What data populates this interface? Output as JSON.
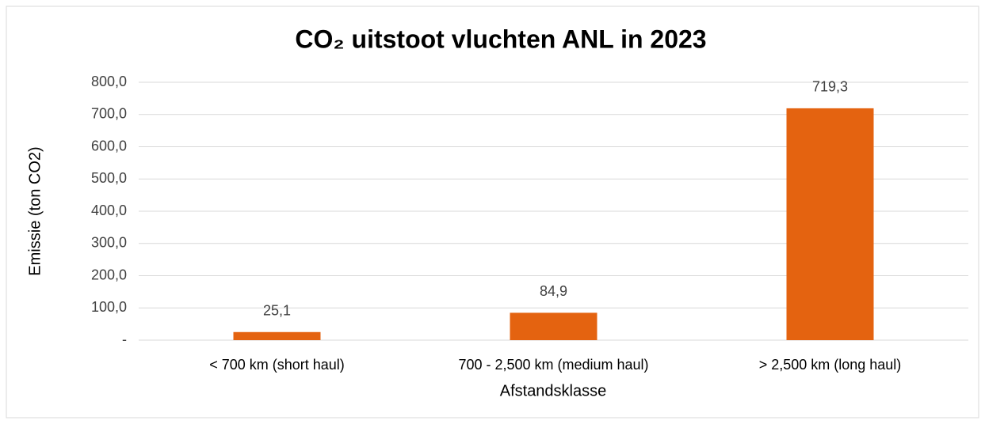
{
  "chart_data": {
    "type": "bar",
    "title": "CO₂ uitstoot vluchten ANL in 2023",
    "x_label": "Afstandsklasse",
    "y_label": "Emissie (ton CO2)",
    "categories": [
      "< 700 km (short haul)",
      "700 - 2,500 km (medium haul)",
      "> 2,500 km (long haul)"
    ],
    "values": [
      25.1,
      84.9,
      719.3
    ],
    "value_labels": [
      "25,1",
      "84,9",
      "719,3"
    ],
    "color": "#e46310",
    "ylim": [
      0,
      800
    ],
    "yticks": [
      {
        "value": 0,
        "label": "-"
      },
      {
        "value": 100,
        "label": "100,0"
      },
      {
        "value": 200,
        "label": "200,0"
      },
      {
        "value": 300,
        "label": "300,0"
      },
      {
        "value": 400,
        "label": "400,0"
      },
      {
        "value": 500,
        "label": "500,0"
      },
      {
        "value": 600,
        "label": "600,0"
      },
      {
        "value": 700,
        "label": "700,0"
      },
      {
        "value": 800,
        "label": "800,0"
      }
    ],
    "grid": true
  }
}
